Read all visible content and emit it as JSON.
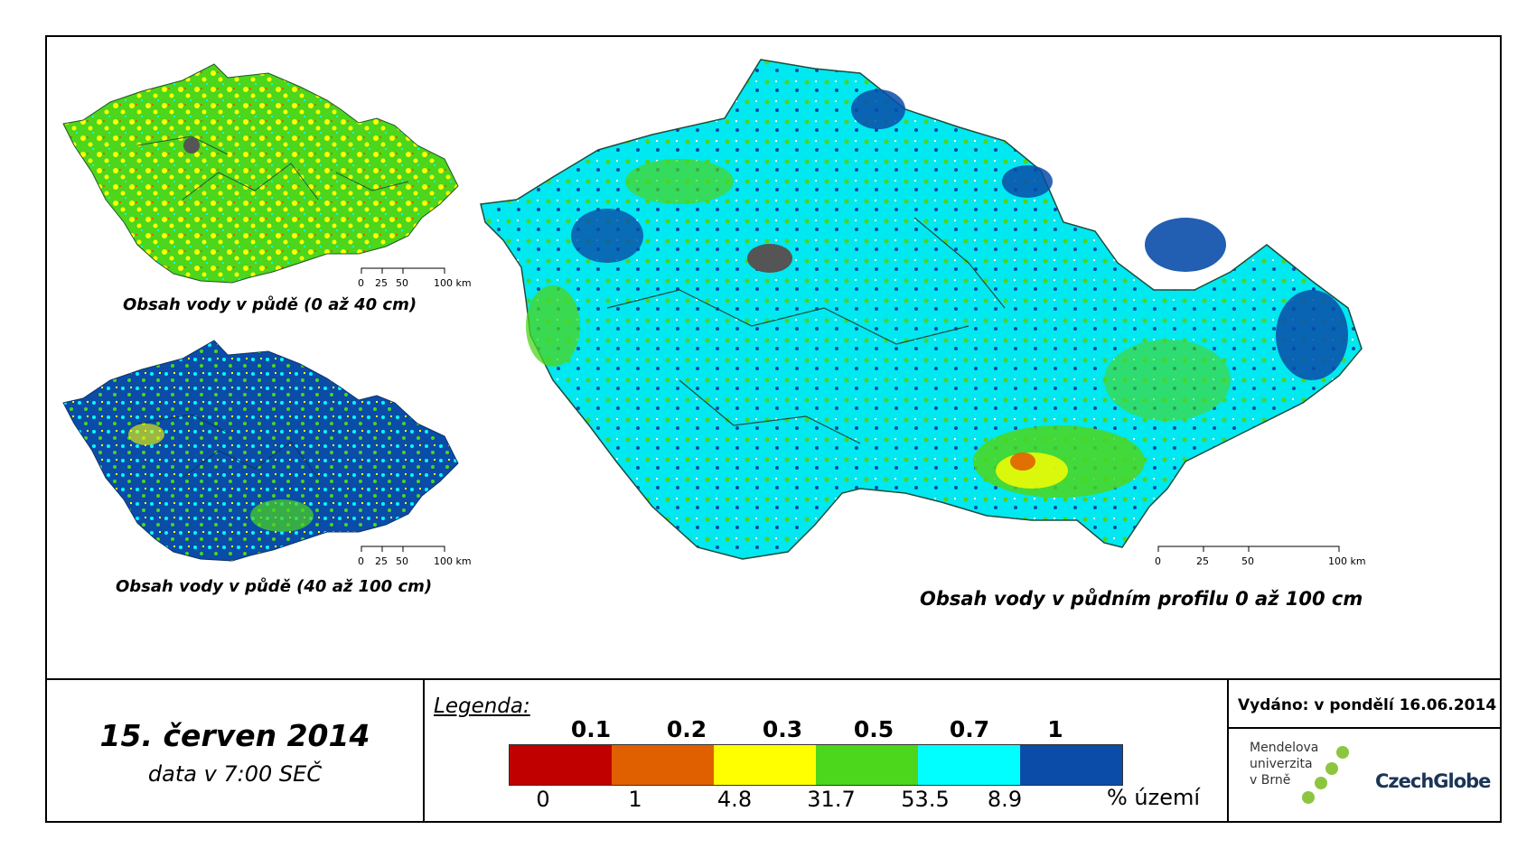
{
  "maps": {
    "small_top": {
      "caption": "Obsah vody v půdě (0 až 40 cm)",
      "scale_labels": [
        "0",
        "25",
        "50",
        "100 km"
      ]
    },
    "small_bottom": {
      "caption": "Obsah vody v půdě (40 až 100 cm)",
      "scale_labels": [
        "0",
        "25",
        "50",
        "100 km"
      ]
    },
    "large": {
      "caption": "Obsah vody v půdním profilu 0 až 100 cm",
      "scale_labels": [
        "0",
        "25",
        "50",
        "100 km"
      ]
    }
  },
  "date": {
    "main": "15. červen 2014",
    "sub": "data v 7:00 SEČ"
  },
  "legend": {
    "title": "Legenda:",
    "thresholds": [
      "0.1",
      "0.2",
      "0.3",
      "0.5",
      "0.7",
      "1"
    ],
    "classes": [
      {
        "color": "#c00000",
        "percent": "0"
      },
      {
        "color": "#e06000",
        "percent": "1"
      },
      {
        "color": "#ffff00",
        "percent": "4.8"
      },
      {
        "color": "#4cd61c",
        "percent": "31.7"
      },
      {
        "color": "#00ffff",
        "percent": "53.5"
      },
      {
        "color": "#0a4ca8",
        "percent": "8.9"
      }
    ],
    "unit": "% území"
  },
  "issued": "Vydáno: v pondělí 16.06.2014",
  "logos": {
    "mendel_lines": [
      "Mendelova",
      "univerzita",
      "v Brně"
    ],
    "czechglobe_name": "CzechGlobe",
    "mendel_dot_color": "#8cc63f",
    "czechglobe_color": "#1b3556"
  }
}
